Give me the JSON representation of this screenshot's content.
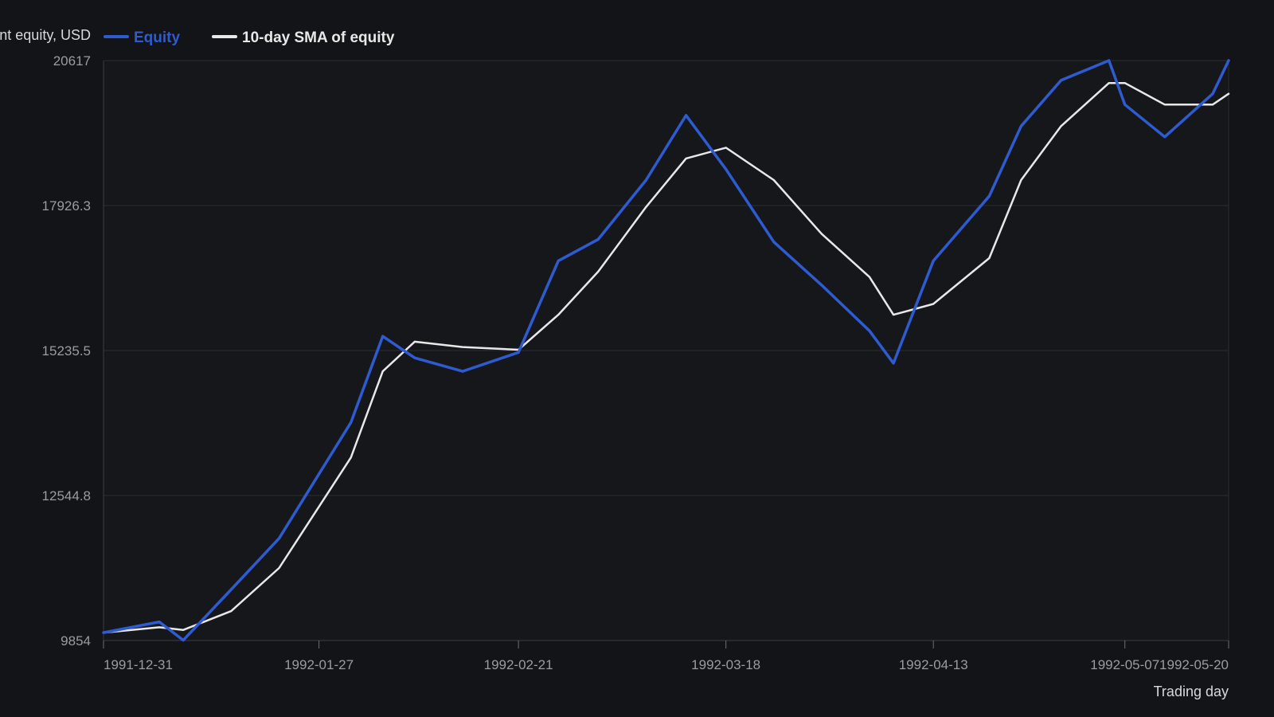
{
  "colors": {
    "background": "#131417",
    "plot_background": "#16171b",
    "equity": "#2e5bd0",
    "sma": "#e8e8e8"
  },
  "chart_data": {
    "type": "line",
    "title": "",
    "ylabel": "Account equity, USD",
    "xlabel": "Trading day",
    "ylim": [
      9854,
      20617
    ],
    "y_ticks": [
      9854,
      12544.8,
      15235.5,
      17926.3,
      20617
    ],
    "y_tick_labels": [
      "9854",
      "12544.8",
      "15235.5",
      "17926.3",
      "20617"
    ],
    "x_ticks": [
      "1991-12-31",
      "1992-01-27",
      "1992-02-21",
      "1992-03-18",
      "1992-04-13",
      "1992-05-07",
      "1992-05-20"
    ],
    "x_tick_labels": [
      "1991-12-31",
      "1992-01-27",
      "1992-02-21",
      "1992-03-18",
      "1992-04-13",
      "1992-05-07",
      "1992-05-20"
    ],
    "grid": true,
    "legend_position": "top-left",
    "x": [
      "1991-12-31",
      "1992-01-07",
      "1992-01-10",
      "1992-01-16",
      "1992-01-22",
      "1992-01-31",
      "1992-02-04",
      "1992-02-08",
      "1992-02-14",
      "1992-02-21",
      "1992-02-26",
      "1992-03-02",
      "1992-03-08",
      "1992-03-13",
      "1992-03-18",
      "1992-03-24",
      "1992-03-30",
      "1992-04-05",
      "1992-04-08",
      "1992-04-13",
      "1992-04-20",
      "1992-04-24",
      "1992-04-29",
      "1992-05-05",
      "1992-05-07",
      "1992-05-12",
      "1992-05-18",
      "1992-05-20"
    ],
    "series": [
      {
        "name": "Equity",
        "color": "#2e5bd0",
        "values": [
          10000,
          10200,
          9860,
          10800,
          11750,
          13900,
          15500,
          15100,
          14850,
          15200,
          16900,
          17300,
          18400,
          19600,
          18600,
          17250,
          16450,
          15600,
          15000,
          16900,
          18100,
          19400,
          20250,
          20617,
          19800,
          19200,
          20000,
          20617
        ]
      },
      {
        "name": "10-day SMA of equity",
        "color": "#e8e8e8",
        "values": [
          10000,
          10100,
          10050,
          10400,
          11200,
          13250,
          14850,
          15400,
          15300,
          15250,
          15900,
          16700,
          17900,
          18800,
          19000,
          18400,
          17400,
          16600,
          15900,
          16100,
          16950,
          18400,
          19400,
          20200,
          20200,
          19800,
          19800,
          20000
        ]
      }
    ]
  }
}
